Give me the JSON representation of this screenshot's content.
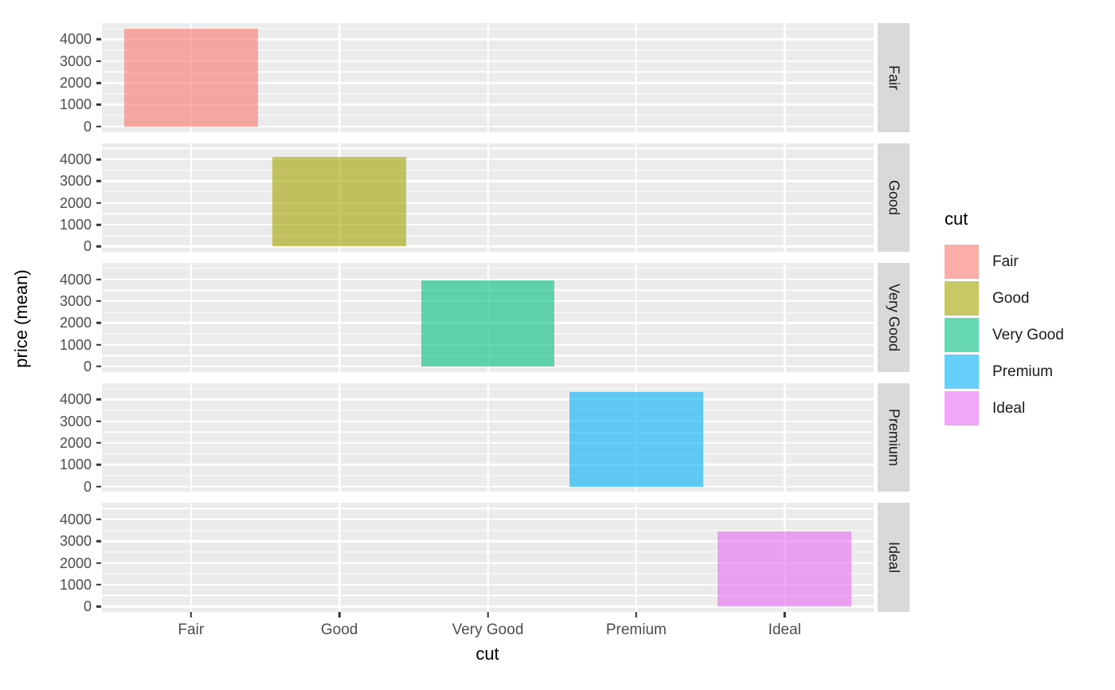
{
  "chart_data": {
    "type": "bar",
    "title": "",
    "xlabel": "cut",
    "ylabel": "price (mean)",
    "categories": [
      "Fair",
      "Good",
      "Very Good",
      "Premium",
      "Ideal"
    ],
    "values": [
      4500,
      4110,
      3950,
      4340,
      3460
    ],
    "facets": [
      "Fair",
      "Good",
      "Very Good",
      "Premium",
      "Ideal"
    ],
    "facet_layout": "one row per cut level, bar shown only in matching facet",
    "yticks": [
      0,
      1000,
      2000,
      3000,
      4000
    ],
    "ytick_labels": [
      "0",
      "1000",
      "2000",
      "3000",
      "4000"
    ],
    "yminor": [
      500,
      1500,
      2500,
      3500,
      4500
    ],
    "ylim": [
      -250,
      4750
    ],
    "bar_width_fraction": 0.9,
    "x_expand_units": 0.6,
    "grid": "on",
    "legend_position": "right",
    "series_colors": [
      "#F8766D",
      "#A3A500",
      "#00BF7D",
      "#00B0F6",
      "#E76BF3"
    ],
    "fill_alpha": 0.6,
    "panel_bg": "#EBEBEB",
    "strip_bg": "#D9D9D9",
    "grid_color": "#FFFFFF",
    "axis_text_color": "#4D4D4D",
    "tick_mark_color": "#333333"
  },
  "legend": {
    "title": "cut",
    "entries": [
      {
        "label": "Fair",
        "color": "#F8766D"
      },
      {
        "label": "Good",
        "color": "#A3A500"
      },
      {
        "label": "Very Good",
        "color": "#00BF7D"
      },
      {
        "label": "Premium",
        "color": "#00B0F6"
      },
      {
        "label": "Ideal",
        "color": "#E76BF3"
      }
    ]
  }
}
